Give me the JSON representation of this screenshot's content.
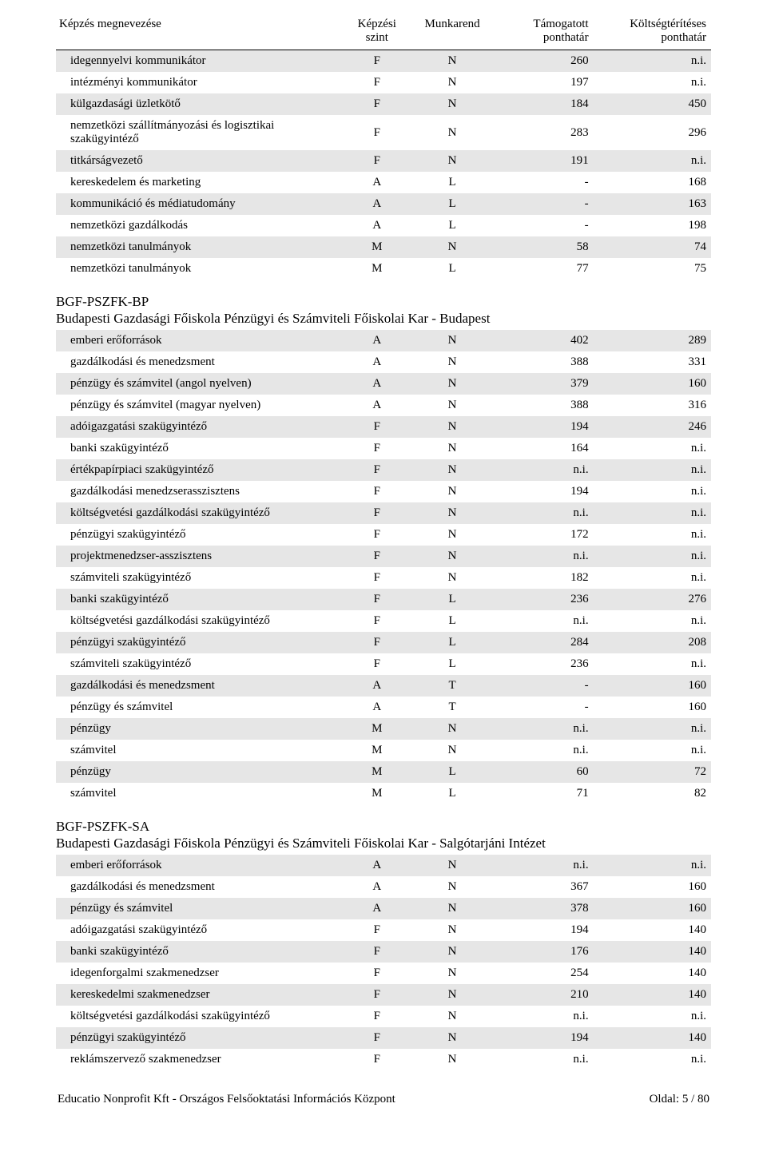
{
  "headers": {
    "name": "Képzés megnevezése",
    "level_line1": "Képzési",
    "level_line2": "szint",
    "schedule": "Munkarend",
    "support_line1": "Támogatott",
    "support_line2": "ponthatár",
    "paid_line1": "Költségtérítéses",
    "paid_line2": "ponthatár"
  },
  "top_rows": [
    {
      "name": "idegennyelvi kommunikátor",
      "level": "F",
      "sched": "N",
      "sup": "260",
      "paid": "n.i."
    },
    {
      "name": "intézményi kommunikátor",
      "level": "F",
      "sched": "N",
      "sup": "197",
      "paid": "n.i."
    },
    {
      "name": "külgazdasági üzletkötő",
      "level": "F",
      "sched": "N",
      "sup": "184",
      "paid": "450"
    },
    {
      "name": "nemzetközi szállítmányozási és logisztikai szakügyintéző",
      "level": "F",
      "sched": "N",
      "sup": "283",
      "paid": "296"
    },
    {
      "name": "titkárságvezető",
      "level": "F",
      "sched": "N",
      "sup": "191",
      "paid": "n.i."
    },
    {
      "name": "kereskedelem és marketing",
      "level": "A",
      "sched": "L",
      "sup": "-",
      "paid": "168"
    },
    {
      "name": "kommunikáció és médiatudomány",
      "level": "A",
      "sched": "L",
      "sup": "-",
      "paid": "163"
    },
    {
      "name": "nemzetközi gazdálkodás",
      "level": "A",
      "sched": "L",
      "sup": "-",
      "paid": "198"
    },
    {
      "name": "nemzetközi tanulmányok",
      "level": "M",
      "sched": "N",
      "sup": "58",
      "paid": "74"
    },
    {
      "name": "nemzetközi tanulmányok",
      "level": "M",
      "sched": "L",
      "sup": "77",
      "paid": "75"
    }
  ],
  "section1": {
    "code": "BGF-PSZFK-BP",
    "title": "Budapesti Gazdasági Főiskola Pénzügyi és Számviteli Főiskolai Kar - Budapest",
    "rows": [
      {
        "name": "emberi erőforrások",
        "level": "A",
        "sched": "N",
        "sup": "402",
        "paid": "289"
      },
      {
        "name": "gazdálkodási és menedzsment",
        "level": "A",
        "sched": "N",
        "sup": "388",
        "paid": "331"
      },
      {
        "name": "pénzügy és számvitel (angol nyelven)",
        "level": "A",
        "sched": "N",
        "sup": "379",
        "paid": "160"
      },
      {
        "name": "pénzügy és számvitel (magyar nyelven)",
        "level": "A",
        "sched": "N",
        "sup": "388",
        "paid": "316"
      },
      {
        "name": "adóigazgatási szakügyintéző",
        "level": "F",
        "sched": "N",
        "sup": "194",
        "paid": "246"
      },
      {
        "name": "banki szakügyintéző",
        "level": "F",
        "sched": "N",
        "sup": "164",
        "paid": "n.i."
      },
      {
        "name": "értékpapírpiaci szakügyintéző",
        "level": "F",
        "sched": "N",
        "sup": "n.i.",
        "paid": "n.i."
      },
      {
        "name": "gazdálkodási menedzserasszisztens",
        "level": "F",
        "sched": "N",
        "sup": "194",
        "paid": "n.i."
      },
      {
        "name": "költségvetési gazdálkodási szakügyintéző",
        "level": "F",
        "sched": "N",
        "sup": "n.i.",
        "paid": "n.i."
      },
      {
        "name": "pénzügyi szakügyintéző",
        "level": "F",
        "sched": "N",
        "sup": "172",
        "paid": "n.i."
      },
      {
        "name": "projektmenedzser-asszisztens",
        "level": "F",
        "sched": "N",
        "sup": "n.i.",
        "paid": "n.i."
      },
      {
        "name": "számviteli szakügyintéző",
        "level": "F",
        "sched": "N",
        "sup": "182",
        "paid": "n.i."
      },
      {
        "name": "banki szakügyintéző",
        "level": "F",
        "sched": "L",
        "sup": "236",
        "paid": "276"
      },
      {
        "name": "költségvetési gazdálkodási szakügyintéző",
        "level": "F",
        "sched": "L",
        "sup": "n.i.",
        "paid": "n.i."
      },
      {
        "name": "pénzügyi szakügyintéző",
        "level": "F",
        "sched": "L",
        "sup": "284",
        "paid": "208"
      },
      {
        "name": "számviteli szakügyintéző",
        "level": "F",
        "sched": "L",
        "sup": "236",
        "paid": "n.i."
      },
      {
        "name": "gazdálkodási és menedzsment",
        "level": "A",
        "sched": "T",
        "sup": "-",
        "paid": "160"
      },
      {
        "name": "pénzügy és számvitel",
        "level": "A",
        "sched": "T",
        "sup": "-",
        "paid": "160"
      },
      {
        "name": "pénzügy",
        "level": "M",
        "sched": "N",
        "sup": "n.i.",
        "paid": "n.i."
      },
      {
        "name": "számvitel",
        "level": "M",
        "sched": "N",
        "sup": "n.i.",
        "paid": "n.i."
      },
      {
        "name": "pénzügy",
        "level": "M",
        "sched": "L",
        "sup": "60",
        "paid": "72"
      },
      {
        "name": "számvitel",
        "level": "M",
        "sched": "L",
        "sup": "71",
        "paid": "82"
      }
    ]
  },
  "section2": {
    "code": "BGF-PSZFK-SA",
    "title": "Budapesti Gazdasági Főiskola Pénzügyi és Számviteli Főiskolai Kar - Salgótarjáni Intézet",
    "rows": [
      {
        "name": "emberi erőforrások",
        "level": "A",
        "sched": "N",
        "sup": "n.i.",
        "paid": "n.i."
      },
      {
        "name": "gazdálkodási és menedzsment",
        "level": "A",
        "sched": "N",
        "sup": "367",
        "paid": "160"
      },
      {
        "name": "pénzügy és számvitel",
        "level": "A",
        "sched": "N",
        "sup": "378",
        "paid": "160"
      },
      {
        "name": "adóigazgatási szakügyintéző",
        "level": "F",
        "sched": "N",
        "sup": "194",
        "paid": "140"
      },
      {
        "name": "banki szakügyintéző",
        "level": "F",
        "sched": "N",
        "sup": "176",
        "paid": "140"
      },
      {
        "name": "idegenforgalmi szakmenedzser",
        "level": "F",
        "sched": "N",
        "sup": "254",
        "paid": "140"
      },
      {
        "name": "kereskedelmi szakmenedzser",
        "level": "F",
        "sched": "N",
        "sup": "210",
        "paid": "140"
      },
      {
        "name": "költségvetési gazdálkodási szakügyintéző",
        "level": "F",
        "sched": "N",
        "sup": "n.i.",
        "paid": "n.i."
      },
      {
        "name": "pénzügyi szakügyintéző",
        "level": "F",
        "sched": "N",
        "sup": "194",
        "paid": "140"
      },
      {
        "name": "reklámszervező szakmenedzser",
        "level": "F",
        "sched": "N",
        "sup": "n.i.",
        "paid": "n.i."
      }
    ]
  },
  "footer": {
    "left": "Educatio Nonprofit Kft - Országos Felsőoktatási Információs Központ",
    "right": "Oldal: 5 / 80"
  }
}
